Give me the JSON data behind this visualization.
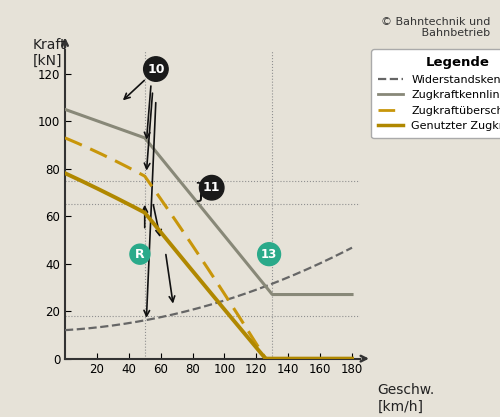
{
  "bg_color": "#e6e2d8",
  "plot_bg_color": "#e6e2d8",
  "copyright": "© Bahntechnik und\n     Bahnbetrieb",
  "ylabel": "Kraft\n[kN]",
  "xlabel": "Geschw.\n[km/h]",
  "xlim": [
    0,
    185
  ],
  "ylim": [
    0,
    130
  ],
  "xticks": [
    20,
    40,
    60,
    80,
    100,
    120,
    140,
    160,
    180
  ],
  "yticks": [
    0,
    20,
    40,
    60,
    80,
    100,
    120
  ],
  "widerstand_color": "#666666",
  "zugkraft_color": "#888878",
  "ueberschuss_color": "#c8960a",
  "genutzt_color": "#b08800",
  "label_widerstand": "Widerstandskennlinie",
  "label_zugkraft": "Zugkraftkennlinie",
  "label_ueberschuss": "Zugkraftüberschuss",
  "label_genutzt": "Genutzter Zugkraftüb.",
  "legend_title": "Legende",
  "teal_color": "#2aaa8a",
  "black_marker_color": "#1a1a1a"
}
